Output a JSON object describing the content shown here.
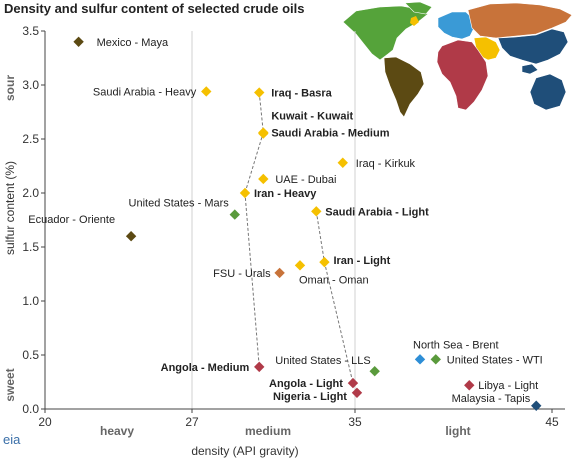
{
  "title": "Density and sulfur content of selected crude oils",
  "logo": "eia",
  "chart_data": {
    "type": "scatter",
    "title": "Density and sulfur content of selected crude oils",
    "xlabel": "density (API gravity)",
    "ylabel": "sulfur content (%)",
    "xlim": [
      20,
      45
    ],
    "ylim": [
      0,
      3.5
    ],
    "x_ticks": [
      "20",
      "27",
      "35",
      "45"
    ],
    "y_ticks": [
      "0.0",
      "0.5",
      "1.0",
      "1.5",
      "2.0",
      "2.5",
      "3.0",
      "3.5"
    ],
    "x_category_labels": [
      "heavy",
      "medium",
      "light"
    ],
    "y_category_labels": [
      "sweet",
      "sour"
    ],
    "grid": "vertical lines at 27 and 35",
    "points": [
      {
        "label": "Mexico - Maya",
        "x": 21.6,
        "y": 3.4,
        "color": "#5c4a13",
        "bold": false
      },
      {
        "label": "Saudi Arabia - Heavy",
        "x": 27.7,
        "y": 2.94,
        "color": "#f5c000",
        "bold": false
      },
      {
        "label": "Iraq - Basra",
        "x": 30.3,
        "y": 2.93,
        "color": "#f5c000",
        "bold": true
      },
      {
        "label": "Kuwait - Kuwait",
        "x": 30.5,
        "y": 2.56,
        "color": "#f5c000",
        "bold": true
      },
      {
        "label": "Saudi Arabia - Medium",
        "x": 30.5,
        "y": 2.55,
        "color": "#f5c000",
        "bold": true
      },
      {
        "label": "Iraq - Kirkuk",
        "x": 34.4,
        "y": 2.28,
        "color": "#f5c000",
        "bold": false
      },
      {
        "label": "UAE - Dubai",
        "x": 30.5,
        "y": 2.13,
        "color": "#f5c000",
        "bold": false
      },
      {
        "label": "Iran - Heavy",
        "x": 29.6,
        "y": 2.0,
        "color": "#f5c000",
        "bold": true
      },
      {
        "label": "United States - Mars",
        "x": 29.1,
        "y": 1.8,
        "color": "#5a9a3c",
        "bold": false
      },
      {
        "label": "Saudi Arabia - Light",
        "x": 33.1,
        "y": 1.83,
        "color": "#f5c000",
        "bold": true
      },
      {
        "label": "Ecuador - Oriente",
        "x": 24.1,
        "y": 1.6,
        "color": "#5c4a13",
        "bold": false
      },
      {
        "label": "Iran - Light",
        "x": 33.5,
        "y": 1.36,
        "color": "#f5c000",
        "bold": true
      },
      {
        "label": "Oman - Oman",
        "x": 32.3,
        "y": 1.33,
        "color": "#f5c000",
        "bold": false
      },
      {
        "label": "FSU - Urals",
        "x": 31.3,
        "y": 1.26,
        "color": "#c8733a",
        "bold": false
      },
      {
        "label": "Angola - Medium",
        "x": 30.3,
        "y": 0.39,
        "color": "#b03a48",
        "bold": true
      },
      {
        "label": "North Sea - Brent",
        "x": 38.3,
        "y": 0.46,
        "color": "#2e8ed6",
        "bold": false
      },
      {
        "label": "United States - WTI",
        "x": 39.1,
        "y": 0.46,
        "color": "#5a9a3c",
        "bold": false
      },
      {
        "label": "United States - LLS",
        "x": 36.0,
        "y": 0.35,
        "color": "#5a9a3c",
        "bold": false
      },
      {
        "label": "Angola - Light",
        "x": 34.9,
        "y": 0.24,
        "color": "#b03a48",
        "bold": true
      },
      {
        "label": "Nigeria - Light",
        "x": 35.1,
        "y": 0.15,
        "color": "#b03a48",
        "bold": true
      },
      {
        "label": "Libya - Light",
        "x": 40.8,
        "y": 0.22,
        "color": "#b03a48",
        "bold": false
      },
      {
        "label": "Malaysia - Tapis",
        "x": 44.2,
        "y": 0.03,
        "color": "#1f4e79",
        "bold": false
      }
    ],
    "connectors": [
      [
        [
          30.3,
          2.93
        ],
        [
          30.5,
          2.56
        ]
      ],
      [
        [
          30.5,
          2.56
        ],
        [
          29.6,
          2.0
        ]
      ],
      [
        [
          29.6,
          2.0
        ],
        [
          30.3,
          0.39
        ]
      ],
      [
        [
          33.1,
          1.83
        ],
        [
          33.5,
          1.36
        ]
      ],
      [
        [
          33.5,
          1.36
        ],
        [
          34.9,
          0.24
        ]
      ]
    ],
    "map_regions": {
      "north_america": "#55a33a",
      "south_america": "#5c4a13",
      "europe": "#3a9ad6",
      "russia": "#c8733a",
      "middle_east": "#f5c000",
      "africa": "#b03a48",
      "asia_pacific": "#1f4e79"
    }
  }
}
